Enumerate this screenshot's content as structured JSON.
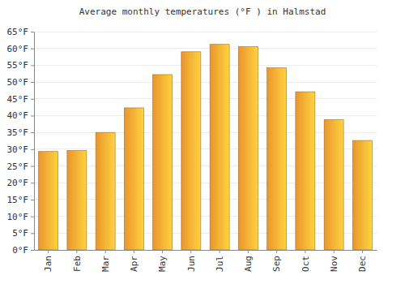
{
  "chart_data": {
    "type": "bar",
    "title": "Average monthly temperatures (°F ) in Halmstad",
    "categories": [
      "Jan",
      "Feb",
      "Mar",
      "Apr",
      "May",
      "Jun",
      "Jul",
      "Aug",
      "Sep",
      "Oct",
      "Nov",
      "Dec"
    ],
    "values": [
      29.3,
      29.6,
      35.0,
      42.3,
      52.2,
      59.0,
      61.2,
      60.5,
      54.2,
      47.1,
      38.8,
      32.6
    ],
    "color": "#ffa431",
    "ylim": [
      0,
      65
    ],
    "yticks": [
      {
        "value": 0,
        "label": "0°F"
      },
      {
        "value": 5,
        "label": "5°F"
      },
      {
        "value": 10,
        "label": "10°F"
      },
      {
        "value": 15,
        "label": "15°F"
      },
      {
        "value": 20,
        "label": "20°F"
      },
      {
        "value": 25,
        "label": "25°F"
      },
      {
        "value": 30,
        "label": "30°F"
      },
      {
        "value": 35,
        "label": "35°F"
      },
      {
        "value": 40,
        "label": "40°F"
      },
      {
        "value": 45,
        "label": "45°F"
      },
      {
        "value": 50,
        "label": "50°F"
      },
      {
        "value": 55,
        "label": "55°F"
      },
      {
        "value": 60,
        "label": "60°F"
      },
      {
        "value": 65,
        "label": "65°F"
      }
    ],
    "grid": true
  }
}
